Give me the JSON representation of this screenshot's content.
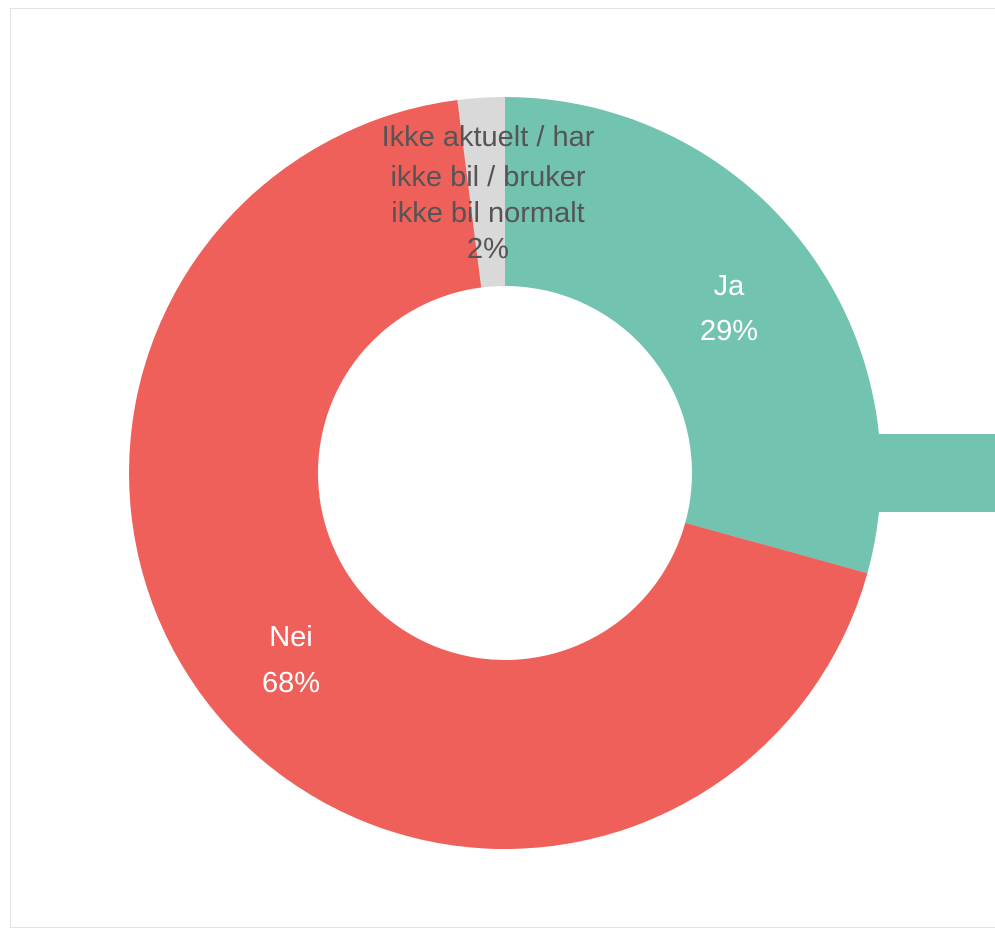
{
  "chart_data": {
    "type": "pie",
    "variant": "donut",
    "title": "",
    "slices": [
      {
        "name": "Ja",
        "value": 29,
        "percent_label": "29%",
        "color": "#73c3b1"
      },
      {
        "name": "Nei",
        "value": 68,
        "percent_label": "68%",
        "color": "#f0605a"
      },
      {
        "name_lines": [
          "Ikke aktuelt / har",
          "ikke bil / bruker",
          "ikke bil normalt"
        ],
        "value": 2,
        "percent_label": "2%",
        "color": "#d9d9d9"
      }
    ]
  }
}
